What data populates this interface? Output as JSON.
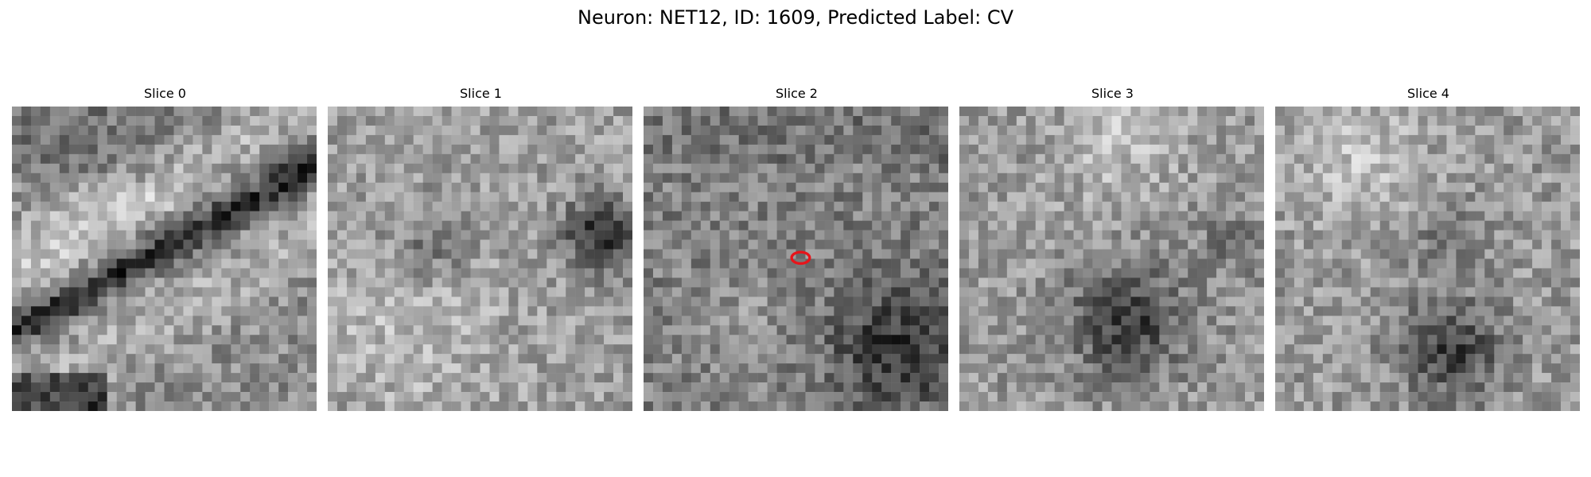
{
  "figure": {
    "title": "Neuron: NET12, ID: 1609, Predicted Label: CV"
  },
  "slices": [
    {
      "label": "Slice 0"
    },
    {
      "label": "Slice 1"
    },
    {
      "label": "Slice 2",
      "has_marker": true,
      "marker_color": "#e8141a"
    },
    {
      "label": "Slice 3"
    },
    {
      "label": "Slice 4"
    }
  ],
  "colors": {
    "background": "#ffffff",
    "colormap": "grayscale",
    "marker": "#e8141a"
  }
}
